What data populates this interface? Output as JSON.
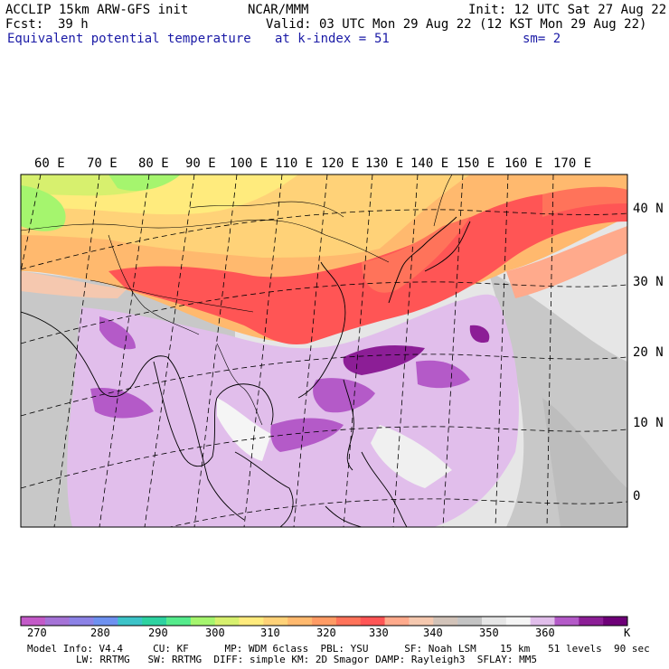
{
  "header": {
    "model": "ACCLIP 15km ARW-GFS init",
    "org": "NCAR/MMM",
    "init": "Init: 12 UTC Sat 27 Aug 22",
    "fcst_label": "Fcst:",
    "fcst_value": "39 h",
    "valid": "Valid: 03 UTC Mon 29 Aug 22 (12 KST Mon 29 Aug 22)",
    "field": "Equivalent potential temperature",
    "level_label": "at k-index =",
    "level_value": "51",
    "smooth": "sm= 2"
  },
  "map": {
    "lon_labels": [
      "60 E",
      "70 E",
      "80 E",
      "90 E",
      "100 E",
      "110 E",
      "120 E",
      "130 E",
      "140 E",
      "150 E",
      "160 E",
      "170 E"
    ],
    "lat_labels": [
      "40 N",
      "30 N",
      "20 N",
      "10 N",
      "0"
    ]
  },
  "legend": {
    "colors": [
      "#c35ac8",
      "#a573d7",
      "#8c82e6",
      "#6e91f0",
      "#3cc3c8",
      "#2dd2a0",
      "#55eb8c",
      "#a5f56e",
      "#d7f06e",
      "#ffeb7d",
      "#ffd278",
      "#ffb96e",
      "#ff9b64",
      "#ff735a",
      "#ff5555",
      "#ffaa8c",
      "#f5c8af",
      "#d2c3b9",
      "#c3c3c3",
      "#e6e6e6",
      "#f5f5f5",
      "#e1beeb",
      "#b45ac8",
      "#8c1e96",
      "#6e0078"
    ],
    "ticks": [
      "270",
      "280",
      "290",
      "300",
      "310",
      "320",
      "330",
      "340",
      "350",
      "360"
    ],
    "unit": "K"
  },
  "footer": {
    "line1": "Model Info: V4.4     CU: KF      MP: WDM 6class  PBL: YSU      SF: Noah LSM    15 km   51 levels  90 sec",
    "line2": "LW: RRTMG   SW: RRTMG  DIFF: simple KM: 2D Smagor DAMP: Rayleigh3  SFLAY: MM5"
  }
}
